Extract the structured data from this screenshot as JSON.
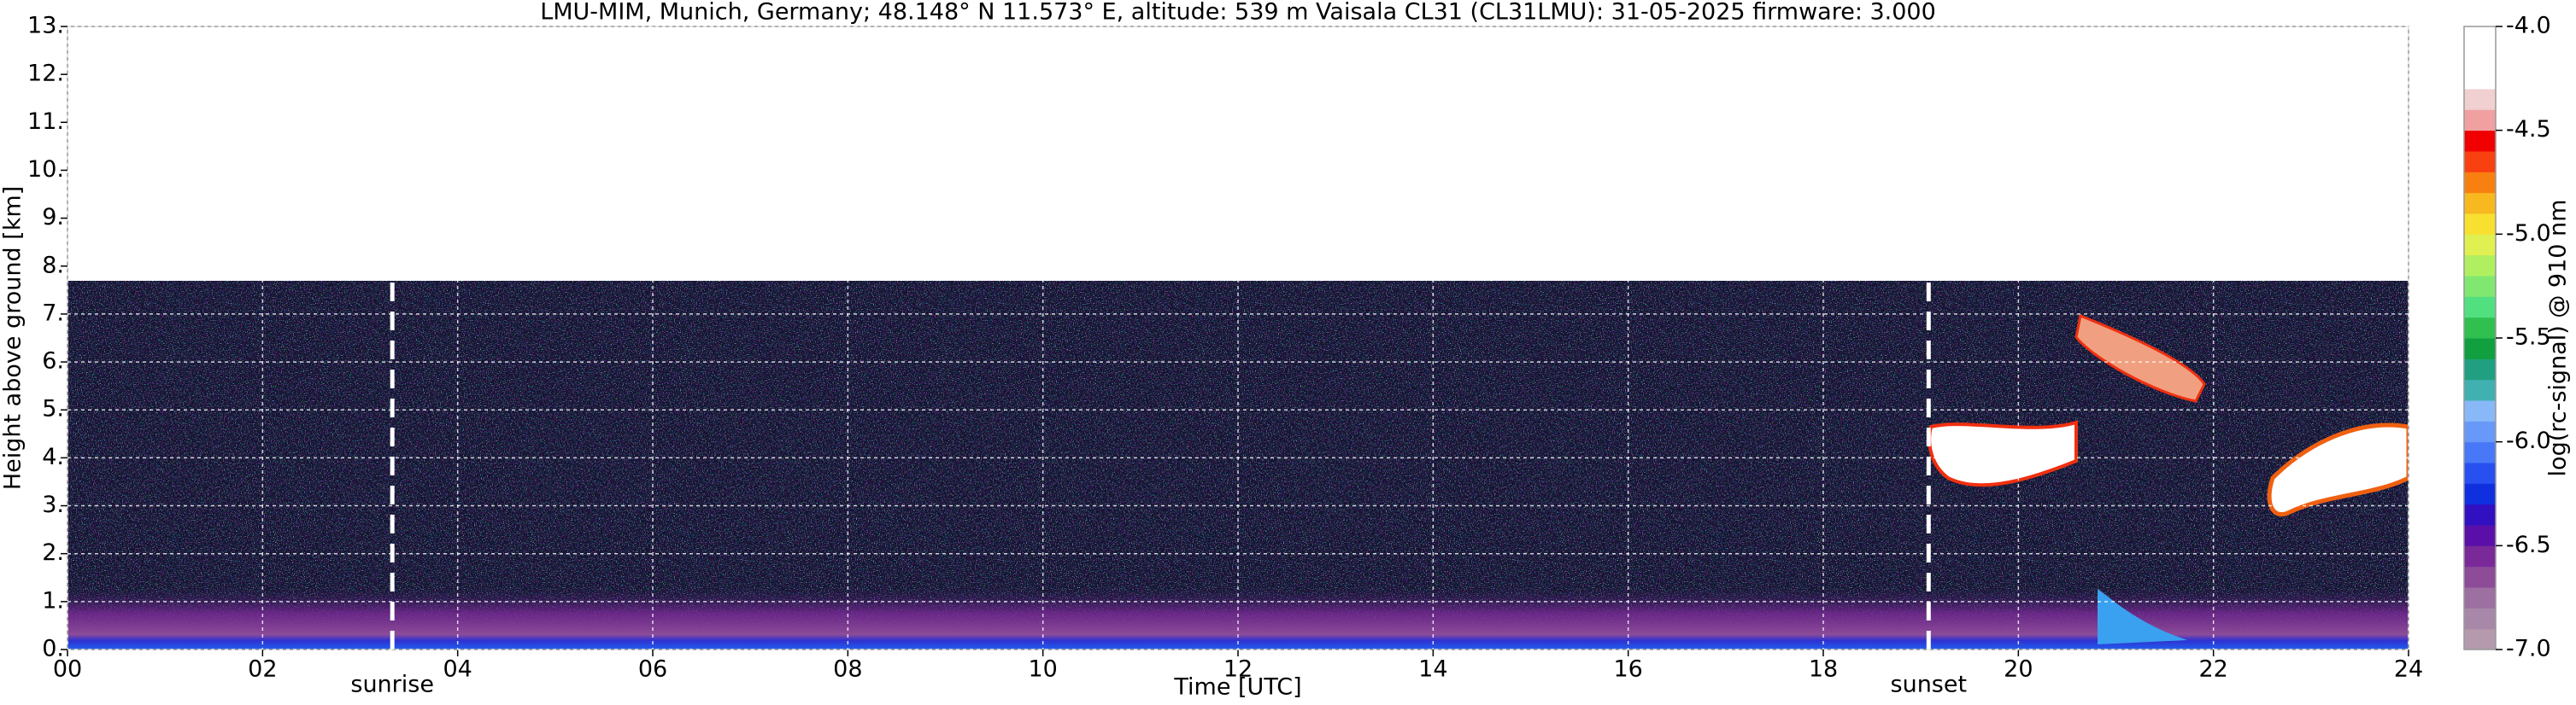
{
  "chart_data": {
    "type": "heatmap",
    "title": "LMU-MIM, Munich, Germany; 48.148° N 11.573° E, altitude: 539 m    Vaisala CL31 (CL31LMU): 31-05-2025    firmware: 3.000",
    "x_label": "Time [UTC]",
    "y_label": "Height above ground [km]",
    "xlim": [
      0,
      24
    ],
    "xticks": [
      {
        "value": 0,
        "label": "00"
      },
      {
        "value": 2,
        "label": "02"
      },
      {
        "value": 4,
        "label": "04"
      },
      {
        "value": 6,
        "label": "06"
      },
      {
        "value": 8,
        "label": "08"
      },
      {
        "value": 10,
        "label": "10"
      },
      {
        "value": 12,
        "label": "12"
      },
      {
        "value": 14,
        "label": "14"
      },
      {
        "value": 16,
        "label": "16"
      },
      {
        "value": 18,
        "label": "18"
      },
      {
        "value": 20,
        "label": "20"
      },
      {
        "value": 22,
        "label": "22"
      },
      {
        "value": 24,
        "label": "24"
      }
    ],
    "ylim": [
      0,
      13
    ],
    "yticks": [
      {
        "value": 0,
        "label": "0."
      },
      {
        "value": 1,
        "label": "1."
      },
      {
        "value": 2,
        "label": "2."
      },
      {
        "value": 3,
        "label": "3."
      },
      {
        "value": 4,
        "label": "4."
      },
      {
        "value": 5,
        "label": "5."
      },
      {
        "value": 6,
        "label": "6."
      },
      {
        "value": 7,
        "label": "7."
      },
      {
        "value": 8,
        "label": "8."
      },
      {
        "value": 9,
        "label": "9."
      },
      {
        "value": 10,
        "label": "10."
      },
      {
        "value": 11,
        "label": "11."
      },
      {
        "value": 12,
        "label": "12."
      },
      {
        "value": 13,
        "label": "13."
      }
    ],
    "grid": true,
    "events": [
      {
        "name": "sunrise",
        "x": 3.33
      },
      {
        "name": "sunset",
        "x": 19.08
      }
    ],
    "colorbar": {
      "label": "log(rc-signal) @ 910 nm",
      "lim": [
        -7,
        -4
      ],
      "ticks": [
        {
          "value": -7,
          "label": "-7.0"
        },
        {
          "value": -6.5,
          "label": "-6.5"
        },
        {
          "value": -6,
          "label": "-6.0"
        },
        {
          "value": -5.5,
          "label": "-5.5"
        },
        {
          "value": -5,
          "label": "-5.0"
        },
        {
          "value": -4.5,
          "label": "-4.5"
        },
        {
          "value": -4,
          "label": "-4.0"
        }
      ],
      "colors": [
        "#b49aac",
        "#a888a8",
        "#9c70a0",
        "#8c4c98",
        "#7a2a98",
        "#5a10a8",
        "#3010c0",
        "#1030e0",
        "#2850f0",
        "#4878f8",
        "#6898f8",
        "#88b8f8",
        "#40b0b0",
        "#20a080",
        "#10a040",
        "#30c050",
        "#50e080",
        "#80e870",
        "#b0f060",
        "#e0f050",
        "#f8e030",
        "#f8b820",
        "#f88010",
        "#f84010",
        "#f00000",
        "#f0a0a0",
        "#f0d0d0",
        "#ffffff",
        "#ffffff",
        "#ffffff"
      ]
    }
  }
}
